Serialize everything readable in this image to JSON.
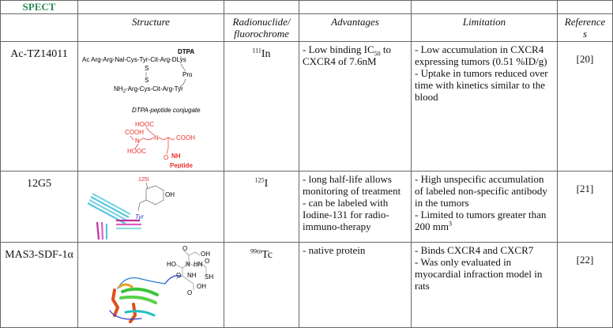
{
  "table": {
    "section_label": "SPECT",
    "headers": {
      "structure": "Structure",
      "radionuclide_line1": "Radionuclide/",
      "radionuclide_line2": "fluorochrome",
      "advantages": "Advantages",
      "limitation": "Limitation",
      "references_line1": "Reference",
      "references_line2": "s"
    },
    "rows": [
      {
        "compound": "Ac-TZ14011",
        "nuclide_mass": "111",
        "nuclide_element": "In",
        "advantages": {
          "pre": "- Low binding IC",
          "sub": "50",
          "post": " to CXCR4 of 7.6nM"
        },
        "limitations": [
          "- Low accumulation in CXCR4 expressing tumors (0.51 %ID/g)",
          "- Uptake in tumors reduced over time with kinetics similar to the blood"
        ],
        "reference": "[20]",
        "structure_labels": {
          "dtpa": "DTPA",
          "chain_top": "Ac  Arg-Arg-Nal-Cys-Tyr-Cit-Arg-DLys",
          "s": "S",
          "pro": "Pro",
          "nh2": "NH",
          "nh2_sub": "2",
          "chain_bottom": "-Arg-Cys-Cit-Arg-Tyr",
          "caption": "DTPA-peptide conjugate",
          "hooc": "HOOC",
          "cooh": "COOH",
          "n": "N",
          "o": "O",
          "nh": "NH",
          "peptide": "Peptide"
        }
      },
      {
        "compound": "12G5",
        "nuclide_mass": "125",
        "nuclide_element": "I",
        "advantages": [
          "- long half-life allows monitoring of treatment",
          "- can be labeled with Iodine-131 for radio-immuno-therapy"
        ],
        "limitations": [
          "- High unspecific accumulation of labeled non-specific antibody in the tumors",
          "- Limited to tumors greater than 200 mm"
        ],
        "limitation_sup": "3",
        "reference": "[21]",
        "structure_labels": {
          "iodine": "125I",
          "oh": "OH",
          "tyr": "Tyr"
        }
      },
      {
        "compound": "MAS3-SDF-1α",
        "nuclide_mass": "99m",
        "nuclide_element": "Tc",
        "advantages": [
          "- native protein"
        ],
        "limitations": [
          "- Binds CXCR4 and CXCR7",
          "- Was only evaluated in myocardial infraction model in rats"
        ],
        "reference": "[22]",
        "structure_labels": {
          "oh": "OH",
          "ho": "HO",
          "hn": "HN",
          "nh": "NH",
          "n": "N",
          "o": "O",
          "sh": "SH"
        }
      }
    ]
  },
  "colors": {
    "spect": "#2e8b57",
    "dtpa_red": "#e8302c",
    "tyr_blue": "#2a3fd0"
  }
}
